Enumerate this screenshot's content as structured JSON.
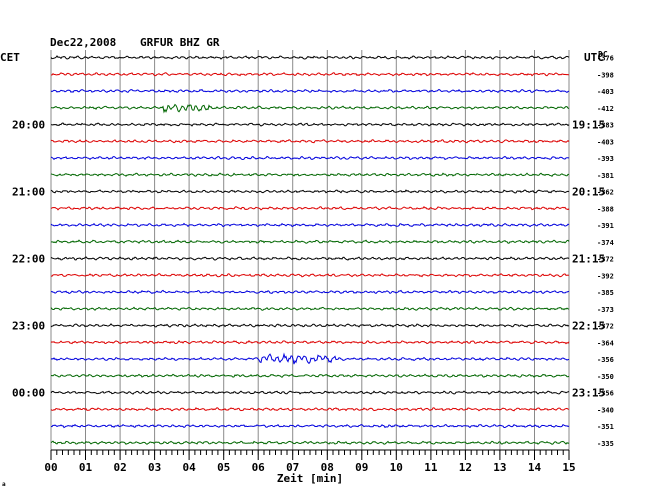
{
  "header": {
    "date": "Dec22,2008",
    "station": "GRFUR BHZ GR",
    "left_zone": "CET",
    "right_zone": "UTC",
    "dc_label": "DC"
  },
  "footer": {
    "xlabel": "Zeit [min]",
    "corner_mark": "a"
  },
  "chart_data": {
    "type": "line",
    "title": "Dec22,2008  GRFUR BHZ GR",
    "xlabel": "Zeit [min]",
    "x_ticks": [
      "00",
      "01",
      "02",
      "03",
      "04",
      "05",
      "06",
      "07",
      "08",
      "09",
      "10",
      "11",
      "12",
      "13",
      "14",
      "15"
    ],
    "xlim": [
      0,
      15
    ],
    "rows_per_hour": 4,
    "trace_colors": [
      "#000000",
      "#dd0000",
      "#0000dd",
      "#006600"
    ],
    "left_time_labels": [
      {
        "row": 4,
        "text": "20:00"
      },
      {
        "row": 8,
        "text": "21:00"
      },
      {
        "row": 12,
        "text": "22:00"
      },
      {
        "row": 16,
        "text": "23:00"
      },
      {
        "row": 20,
        "text": "00:00"
      }
    ],
    "right_time_labels": [
      {
        "row": 4,
        "text": "19:15"
      },
      {
        "row": 8,
        "text": "20:15"
      },
      {
        "row": 12,
        "text": "21:15"
      },
      {
        "row": 16,
        "text": "22:15"
      },
      {
        "row": 20,
        "text": "23:15"
      }
    ],
    "dc_offsets": [
      "-376",
      "-398",
      "-403",
      "-412",
      "-383",
      "-403",
      "-393",
      "-381",
      "-362",
      "-388",
      "-391",
      "-374",
      "-372",
      "-392",
      "-385",
      "-373",
      "-372",
      "-364",
      "-356",
      "-350",
      "-356",
      "-340",
      "-351",
      "-335"
    ],
    "events": [
      {
        "row": 3,
        "from_min": 3.2,
        "to_min": 4.6,
        "amp_factor": 3.0
      },
      {
        "row": 18,
        "from_min": 6.0,
        "to_min": 8.3,
        "amp_factor": 3.5
      }
    ]
  }
}
